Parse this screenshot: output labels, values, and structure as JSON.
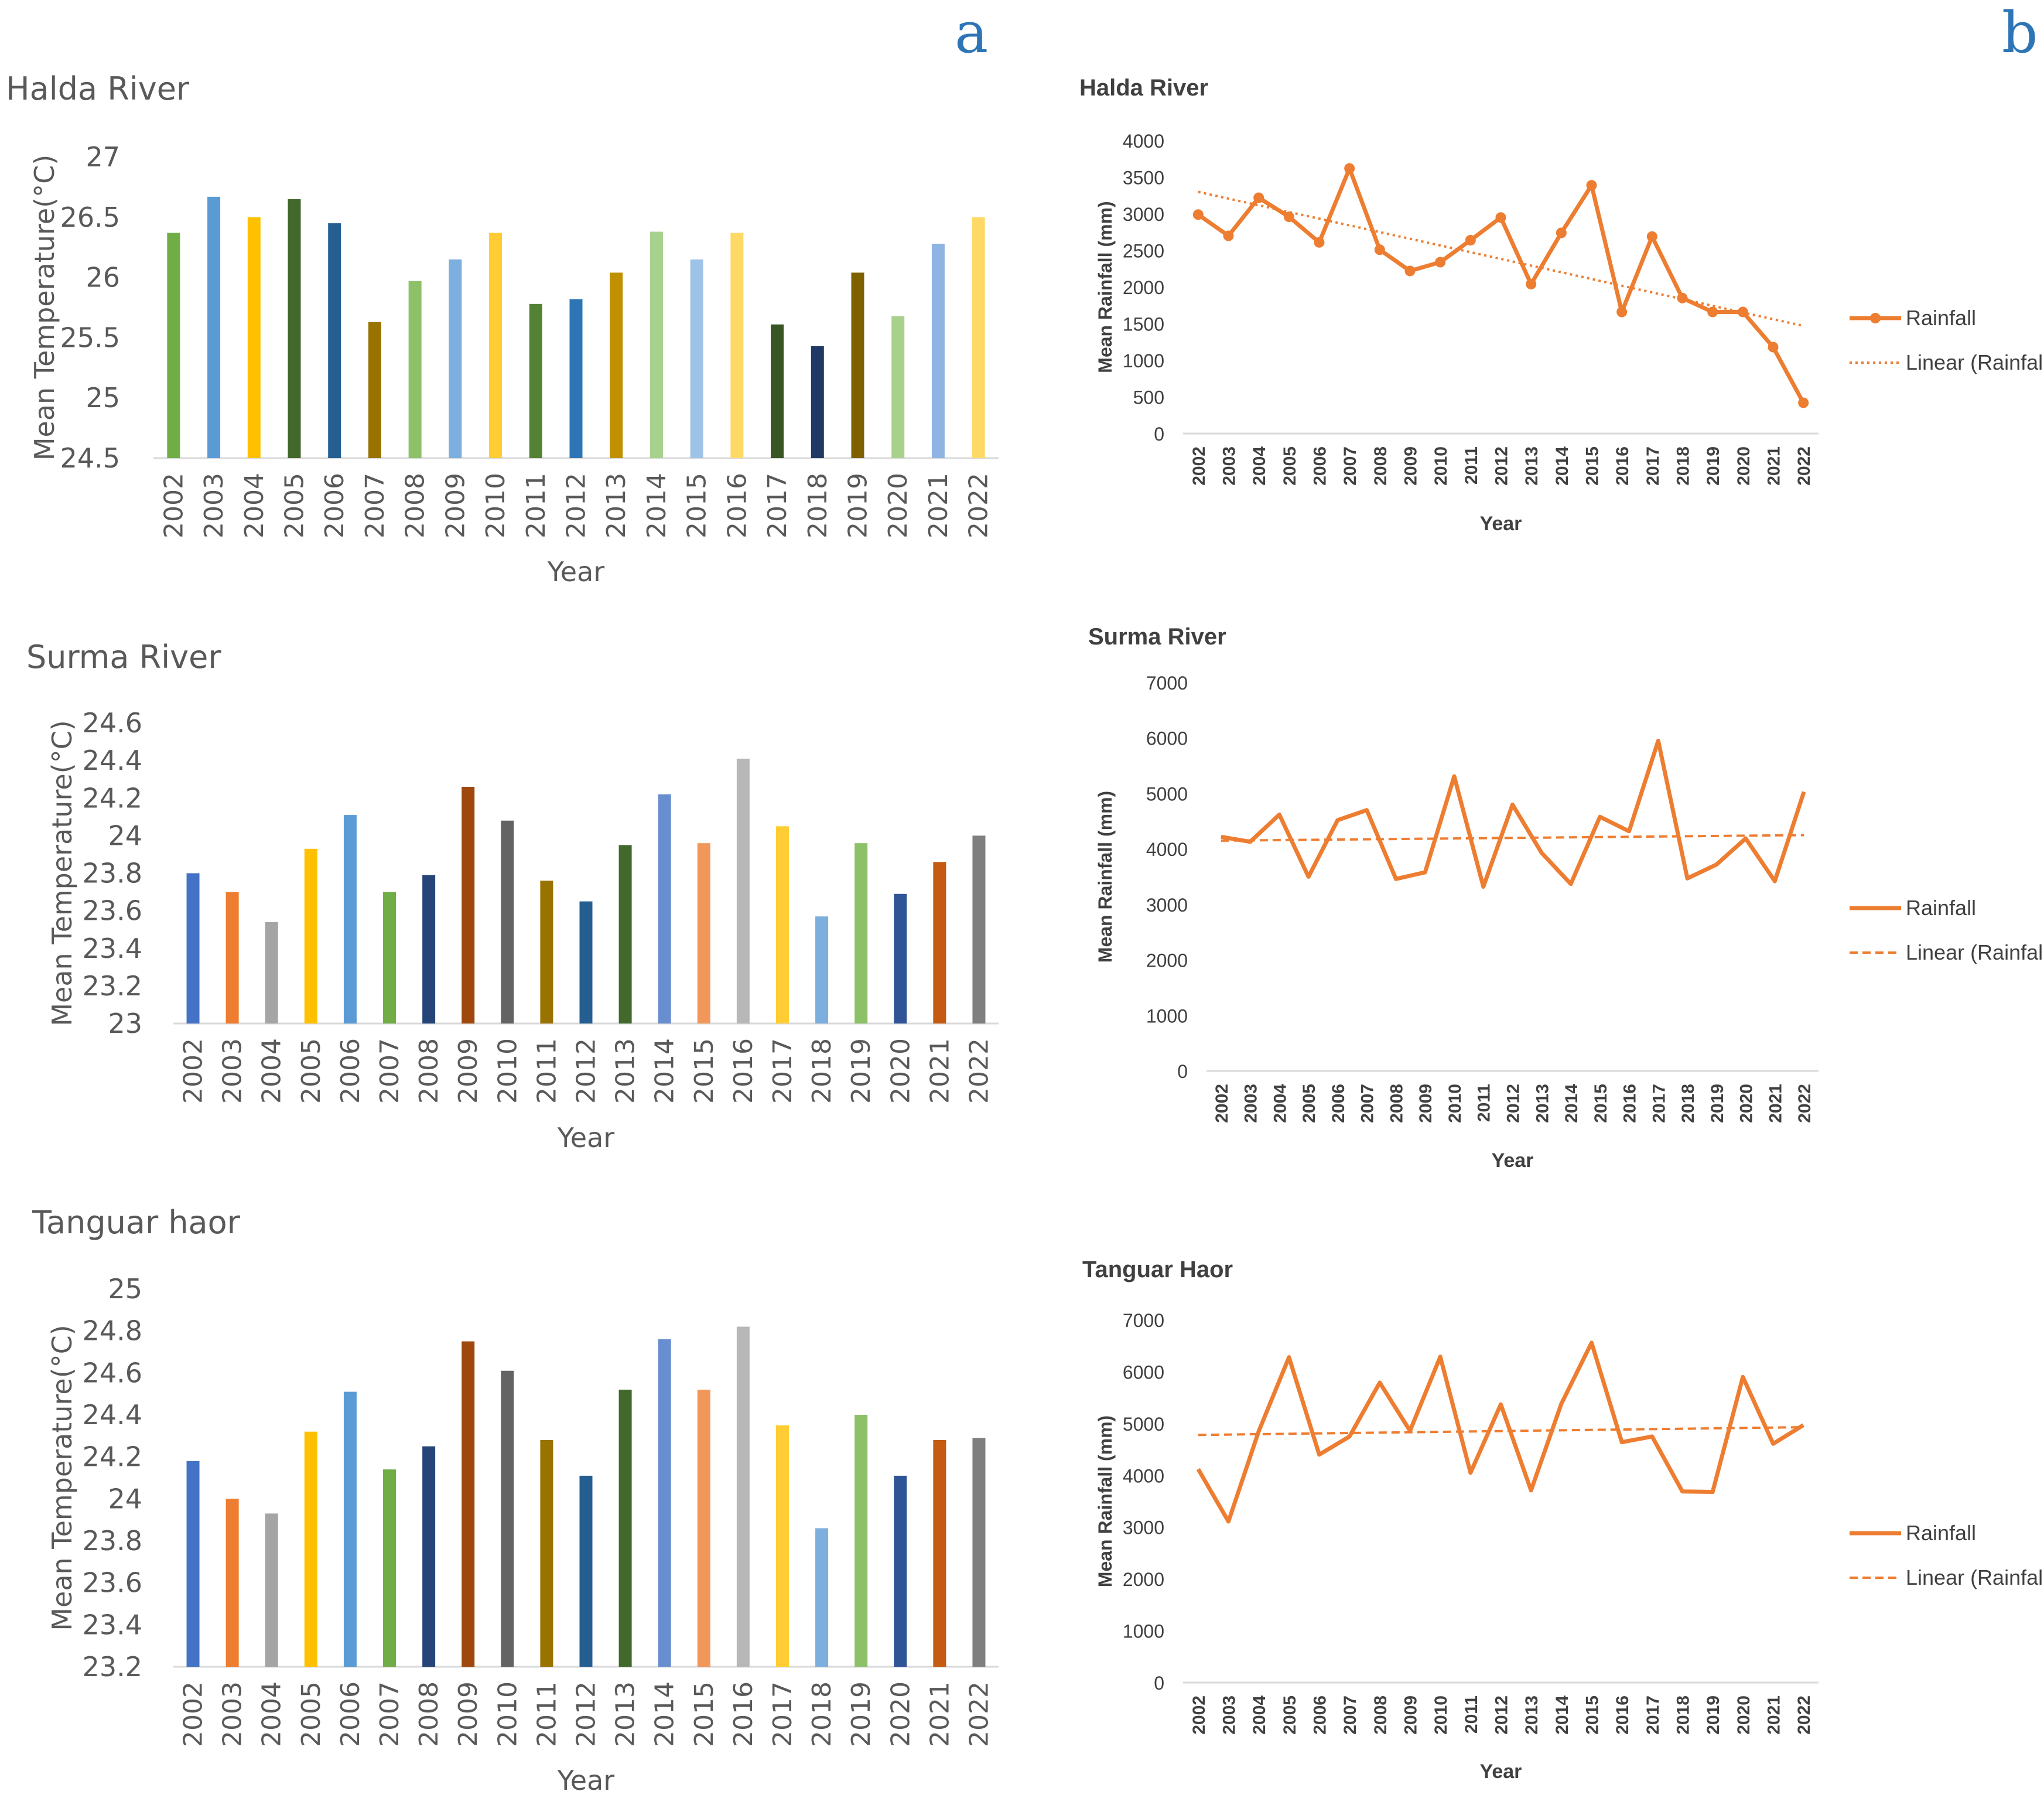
{
  "panel_labels": [
    "a",
    "b"
  ],
  "series_colors": {
    "temperature_bars": [
      "#70AD47",
      "#5B9BD5",
      "#FFC000",
      "#43682B",
      "#255E91",
      "#997300",
      "#8CC168",
      "#7CAFDD",
      "#FFCD33",
      "#548235",
      "#2E75B6",
      "#BF9000",
      "#A9D18E",
      "#9DC3E6",
      "#FFD966",
      "#375623",
      "#1F3864",
      "#7F6000",
      "#A9D18E",
      "#8FB4E3",
      "#FFD966"
    ],
    "temperature_bars_2": [
      "#4472C4",
      "#ED7D31",
      "#A5A5A5",
      "#FFC000",
      "#5B9BD5",
      "#70AD47",
      "#264478",
      "#9E480E",
      "#636363",
      "#997300",
      "#255E91",
      "#43682B",
      "#698ED0",
      "#F1975A",
      "#B7B7B7",
      "#FFCD33",
      "#7CAFDD",
      "#8CC168",
      "#2F5597",
      "#C55A11",
      "#7F7F7F"
    ],
    "rainfall": "#ED7D31"
  },
  "chart_data": [
    {
      "type": "bar",
      "title": "Halda River",
      "xlabel": "Year",
      "ylabel": "Mean Temperature(°C)",
      "ylim": [
        24.5,
        27
      ],
      "yticks": [
        "24.5",
        "25",
        "25.5",
        "26",
        "26.5",
        "27"
      ],
      "categories": [
        "2002",
        "2003",
        "2004",
        "2005",
        "2006",
        "2007",
        "2008",
        "2009",
        "2010",
        "2011",
        "2012",
        "2013",
        "2014",
        "2015",
        "2016",
        "2017",
        "2018",
        "2019",
        "2020",
        "2021",
        "2022"
      ],
      "values": [
        26.37,
        26.67,
        26.5,
        26.65,
        26.45,
        25.63,
        25.97,
        26.15,
        26.37,
        25.78,
        25.82,
        26.04,
        26.38,
        26.15,
        26.37,
        25.61,
        25.43,
        26.04,
        25.68,
        26.28,
        26.5
      ]
    },
    {
      "type": "bar",
      "title": "Surma River",
      "xlabel": "Year",
      "ylabel": "Mean Temperature(°C)",
      "ylim": [
        23,
        24.6
      ],
      "yticks": [
        "23",
        "23.2",
        "23.4",
        "23.6",
        "23.8",
        "24",
        "24.2",
        "24.4",
        "24.6"
      ],
      "categories": [
        "2002",
        "2003",
        "2004",
        "2005",
        "2006",
        "2007",
        "2008",
        "2009",
        "2010",
        "2011",
        "2012",
        "2013",
        "2014",
        "2015",
        "2016",
        "2017",
        "2018",
        "2019",
        "2020",
        "2021",
        "2022"
      ],
      "values": [
        23.8,
        23.7,
        23.54,
        23.93,
        24.11,
        23.7,
        23.79,
        24.26,
        24.08,
        23.76,
        23.65,
        23.95,
        24.22,
        23.96,
        24.41,
        24.05,
        23.57,
        23.96,
        23.69,
        23.86,
        24.0
      ]
    },
    {
      "type": "bar",
      "title": "Tanguar haor",
      "xlabel": "Year",
      "ylabel": "Mean Temperature(°C)",
      "ylim": [
        23.2,
        25
      ],
      "yticks": [
        "23.2",
        "23.4",
        "23.6",
        "23.8",
        "24",
        "24.2",
        "24.4",
        "24.6",
        "24.8",
        "25"
      ],
      "categories": [
        "2002",
        "2003",
        "2004",
        "2005",
        "2006",
        "2007",
        "2008",
        "2009",
        "2010",
        "2011",
        "2012",
        "2013",
        "2014",
        "2015",
        "2016",
        "2017",
        "2018",
        "2019",
        "2020",
        "2021",
        "2022"
      ],
      "values": [
        24.18,
        24.0,
        23.93,
        24.32,
        24.51,
        24.14,
        24.25,
        24.75,
        24.61,
        24.28,
        24.11,
        24.52,
        24.76,
        24.52,
        24.82,
        24.35,
        23.86,
        24.4,
        24.11,
        24.28,
        24.29
      ]
    },
    {
      "type": "line",
      "title": "Halda River",
      "xlabel": "Year",
      "ylabel": "Mean Rainfall (mm)",
      "ylim": [
        0,
        4000
      ],
      "yticks": [
        "0",
        "500",
        "1000",
        "1500",
        "2000",
        "2500",
        "3000",
        "3500",
        "4000"
      ],
      "markers": true,
      "trend_style": "dotted",
      "legend": [
        "Rainfall",
        "Linear (Rainfall)"
      ],
      "categories": [
        "2002",
        "2003",
        "2004",
        "2005",
        "2006",
        "2007",
        "2008",
        "2009",
        "2010",
        "2011",
        "2012",
        "2013",
        "2014",
        "2015",
        "2016",
        "2017",
        "2018",
        "2019",
        "2020",
        "2021",
        "2022"
      ],
      "values": [
        2990,
        2700,
        3220,
        2960,
        2610,
        3620,
        2510,
        2220,
        2340,
        2640,
        2950,
        2040,
        2740,
        3390,
        1660,
        2690,
        1850,
        1660,
        1660,
        1180,
        420
      ],
      "trend": [
        3300,
        1470
      ]
    },
    {
      "type": "line",
      "title": "Surma River",
      "xlabel": "Year",
      "ylabel": "Mean Rainfall (mm)",
      "ylim": [
        0,
        7000
      ],
      "yticks": [
        "0",
        "1000",
        "2000",
        "3000",
        "4000",
        "5000",
        "6000",
        "7000"
      ],
      "markers": false,
      "trend_style": "dashed",
      "legend": [
        "Rainfall",
        "Linear (Rainfall)"
      ],
      "categories": [
        "2002",
        "2003",
        "2004",
        "2005",
        "2006",
        "2007",
        "2008",
        "2009",
        "2010",
        "2011",
        "2012",
        "2013",
        "2014",
        "2015",
        "2016",
        "2017",
        "2018",
        "2019",
        "2020",
        "2021",
        "2022"
      ],
      "values": [
        4220,
        4130,
        4620,
        3500,
        4520,
        4700,
        3460,
        3580,
        5310,
        3320,
        4800,
        3930,
        3370,
        4580,
        4320,
        5950,
        3470,
        3720,
        4190,
        3420,
        5030
      ],
      "trend": [
        4150,
        4250
      ]
    },
    {
      "type": "line",
      "title": "Tanguar Haor",
      "xlabel": "Year",
      "ylabel": "Mean Rainfall (mm)",
      "ylim": [
        0,
        7000
      ],
      "yticks": [
        "0",
        "1000",
        "2000",
        "3000",
        "4000",
        "5000",
        "6000",
        "7000"
      ],
      "markers": false,
      "trend_style": "dashed",
      "legend": [
        "Rainfall",
        "Linear (Rainfall)"
      ],
      "categories": [
        "2002",
        "2003",
        "2004",
        "2005",
        "2006",
        "2007",
        "2008",
        "2009",
        "2010",
        "2011",
        "2012",
        "2013",
        "2014",
        "2015",
        "2016",
        "2017",
        "2018",
        "2019",
        "2020",
        "2021",
        "2022"
      ],
      "values": [
        4120,
        3110,
        4850,
        6280,
        4400,
        4750,
        5790,
        4860,
        6290,
        4050,
        5370,
        3710,
        5380,
        6560,
        4640,
        4750,
        3690,
        3680,
        5900,
        4610,
        4970
      ],
      "trend": [
        4780,
        4930
      ]
    }
  ]
}
